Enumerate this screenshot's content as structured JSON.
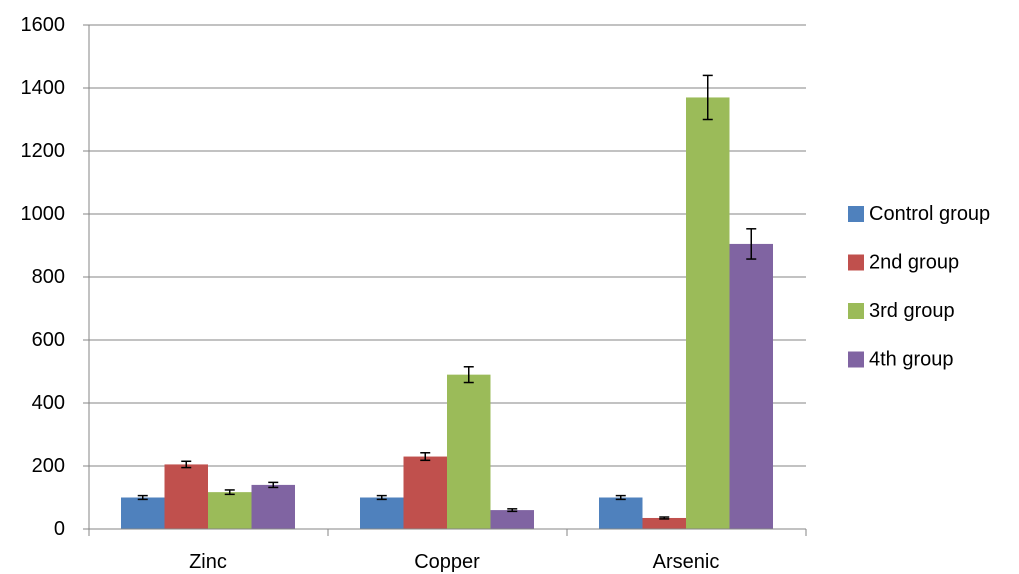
{
  "chart_data": {
    "type": "bar",
    "title": "",
    "xlabel": "",
    "ylabel": "",
    "categories": [
      "Zinc",
      "Copper",
      "Arsenic"
    ],
    "ylim": [
      0,
      1600
    ],
    "yticks": [
      0,
      200,
      400,
      600,
      800,
      1000,
      1200,
      1400,
      1600
    ],
    "ytick_labels": [
      "0",
      "200",
      "400",
      "600",
      "800",
      "1000",
      "1200",
      "1400",
      "1600"
    ],
    "grid": true,
    "legend_position": "right",
    "error_bars": true,
    "series": [
      {
        "name": "Control group",
        "color": "#4f81bd",
        "values": [
          100,
          100,
          100
        ],
        "errors": [
          6,
          6,
          6
        ]
      },
      {
        "name": "2nd group",
        "color": "#c0504d",
        "values": [
          205,
          230,
          35
        ],
        "errors": [
          10,
          12,
          3
        ]
      },
      {
        "name": "3rd group",
        "color": "#9bbb59",
        "values": [
          117,
          490,
          1370
        ],
        "errors": [
          7,
          25,
          70
        ]
      },
      {
        "name": "4th group",
        "color": "#8064a2",
        "values": [
          140,
          60,
          905
        ],
        "errors": [
          8,
          4,
          48
        ]
      }
    ]
  }
}
